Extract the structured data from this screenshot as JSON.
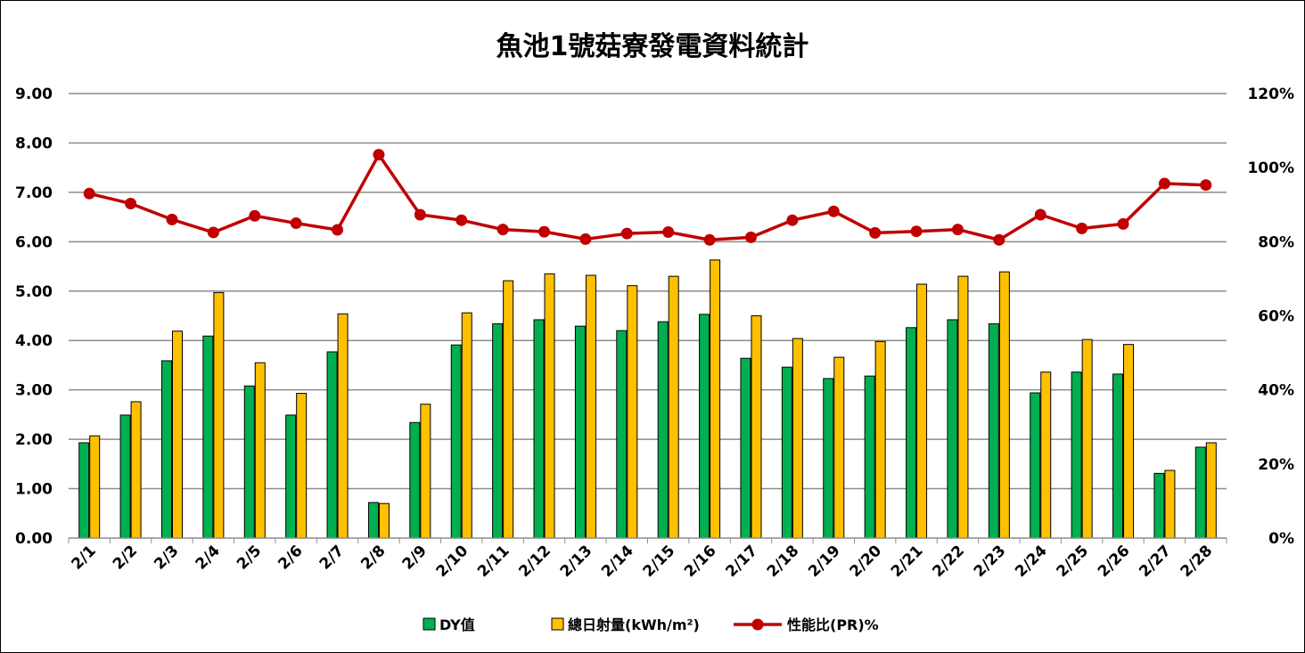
{
  "chart_data": {
    "type": "bar",
    "title": "魚池1號菇寮發電資料統計",
    "categories": [
      "2/1",
      "2/2",
      "2/3",
      "2/4",
      "2/5",
      "2/6",
      "2/7",
      "2/8",
      "2/9",
      "2/10",
      "2/11",
      "2/12",
      "2/13",
      "2/14",
      "2/15",
      "2/16",
      "2/17",
      "2/18",
      "2/19",
      "2/20",
      "2/21",
      "2/22",
      "2/23",
      "2/24",
      "2/25",
      "2/26",
      "2/27",
      "2/28"
    ],
    "series": [
      {
        "name": "DY值",
        "type": "bar",
        "axis": "left",
        "color": "#00B050",
        "values": [
          1.93,
          2.49,
          3.59,
          4.09,
          3.08,
          2.49,
          3.77,
          0.72,
          2.34,
          3.91,
          4.34,
          4.42,
          4.29,
          4.2,
          4.38,
          4.53,
          3.64,
          3.46,
          3.23,
          3.28,
          4.26,
          4.42,
          4.34,
          2.94,
          3.36,
          3.32,
          1.31,
          1.84
        ]
      },
      {
        "name": "總日射量(kWh/m²)",
        "type": "bar",
        "axis": "left",
        "color": "#FFC000",
        "values": [
          2.07,
          2.76,
          4.19,
          4.97,
          3.55,
          2.93,
          4.54,
          0.7,
          2.71,
          4.56,
          5.21,
          5.35,
          5.32,
          5.11,
          5.3,
          5.63,
          4.5,
          4.04,
          3.66,
          3.98,
          5.14,
          5.3,
          5.39,
          3.36,
          4.02,
          3.92,
          1.37,
          1.93
        ]
      },
      {
        "name": "性能比(PR)%",
        "type": "line",
        "axis": "right",
        "color": "#C00000",
        "values": [
          93,
          90.3,
          86,
          82.5,
          87,
          85,
          83.2,
          103.5,
          87.3,
          85.8,
          83.3,
          82.7,
          80.7,
          82.2,
          82.6,
          80.5,
          81.2,
          85.8,
          88.2,
          82.4,
          82.8,
          83.3,
          80.5,
          87.3,
          83.6,
          84.8,
          95.7,
          95.3
        ]
      }
    ],
    "yleft": {
      "min": 0,
      "max": 9,
      "ticks": [
        "0.00",
        "1.00",
        "2.00",
        "3.00",
        "4.00",
        "5.00",
        "6.00",
        "7.00",
        "8.00",
        "9.00"
      ]
    },
    "yright": {
      "min": 0,
      "max": 120,
      "ticks": [
        "0%",
        "20%",
        "40%",
        "60%",
        "80%",
        "100%",
        "120%"
      ]
    },
    "grid": true,
    "legend": "bottom"
  }
}
